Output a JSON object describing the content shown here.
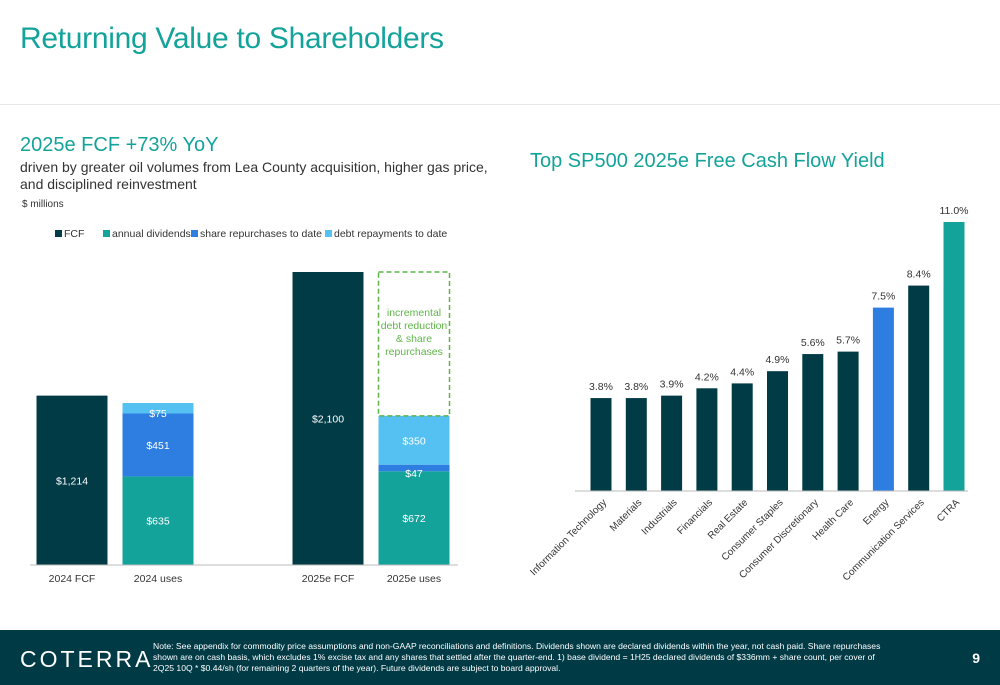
{
  "header": {
    "title": "Returning Value to Shareholders"
  },
  "left": {
    "heading": "2025e FCF +73% YoY",
    "subheading": "driven by greater oil volumes from Lea County acquisition, higher gas price, and disciplined reinvestment",
    "units": "$ millions"
  },
  "right": {
    "heading": "Top SP500 2025e Free Cash Flow Yield"
  },
  "colors": {
    "dark": "#003b46",
    "teal": "#14a39b",
    "blue": "#2e7de0",
    "light": "#55c1f2",
    "green": "#5fb548"
  },
  "chart_data": [
    {
      "type": "bar",
      "stacked": true,
      "categories": [
        "2024 FCF",
        "2024 uses",
        "2025e FCF",
        "2025e uses"
      ],
      "series": [
        {
          "name": "FCF",
          "color": "#003b46",
          "values": [
            1214,
            0,
            2100,
            0
          ],
          "labels": [
            "$1,214",
            "",
            "$2,100",
            ""
          ]
        },
        {
          "name": "annual dividends",
          "color": "#14a39b",
          "values": [
            0,
            635,
            0,
            672
          ],
          "labels": [
            "",
            "$635",
            "",
            "$672"
          ]
        },
        {
          "name": "share repurchases to date",
          "color": "#2e7de0",
          "values": [
            0,
            451,
            0,
            47
          ],
          "labels": [
            "",
            "$451",
            "",
            "$47"
          ]
        },
        {
          "name": "debt repayments to date",
          "color": "#55c1f2",
          "values": [
            0,
            75,
            0,
            350
          ],
          "labels": [
            "",
            "$75",
            "",
            "$350"
          ]
        }
      ],
      "ylim": [
        0,
        2100
      ],
      "legend_position": "top",
      "annotation": {
        "text_lines": [
          "incremental",
          "debt reduction",
          "& share",
          "repurchases"
        ],
        "category": "2025e uses"
      }
    },
    {
      "type": "bar",
      "categories": [
        "Information Technology",
        "Materials",
        "Industrials",
        "Financials",
        "Real Estate",
        "Consumer Staples",
        "Consumer Discretionary",
        "Health Care",
        "Energy",
        "Communication Services",
        "CTRA"
      ],
      "values": [
        3.8,
        3.8,
        3.9,
        4.2,
        4.4,
        4.9,
        5.6,
        5.7,
        7.5,
        8.4,
        11.0
      ],
      "labels": [
        "3.8%",
        "3.8%",
        "3.9%",
        "4.2%",
        "4.4%",
        "4.9%",
        "5.6%",
        "5.7%",
        "7.5%",
        "8.4%",
        "11.0%"
      ],
      "colors": [
        "#003b46",
        "#003b46",
        "#003b46",
        "#003b46",
        "#003b46",
        "#003b46",
        "#003b46",
        "#003b46",
        "#2e7de0",
        "#003b46",
        "#14a39b"
      ],
      "ylim": [
        0,
        11.0
      ]
    }
  ],
  "footer": {
    "logo": "COTERRA",
    "note": "Note: See appendix for commodity price assumptions and non-GAAP reconciliations and definitions. Dividends shown are declared dividends within the year, not cash paid. Share repurchases shown are on cash basis, which excludes 1% excise tax and any shares that settled after the quarter-end. 1) base dividend = 1H25 declared dividends of $336mm + share count, per cover of 2Q25 10Q * $0.44/sh (for remaining 2 quarters of the year). Future dividends are subject to board approval.",
    "page": "9"
  }
}
